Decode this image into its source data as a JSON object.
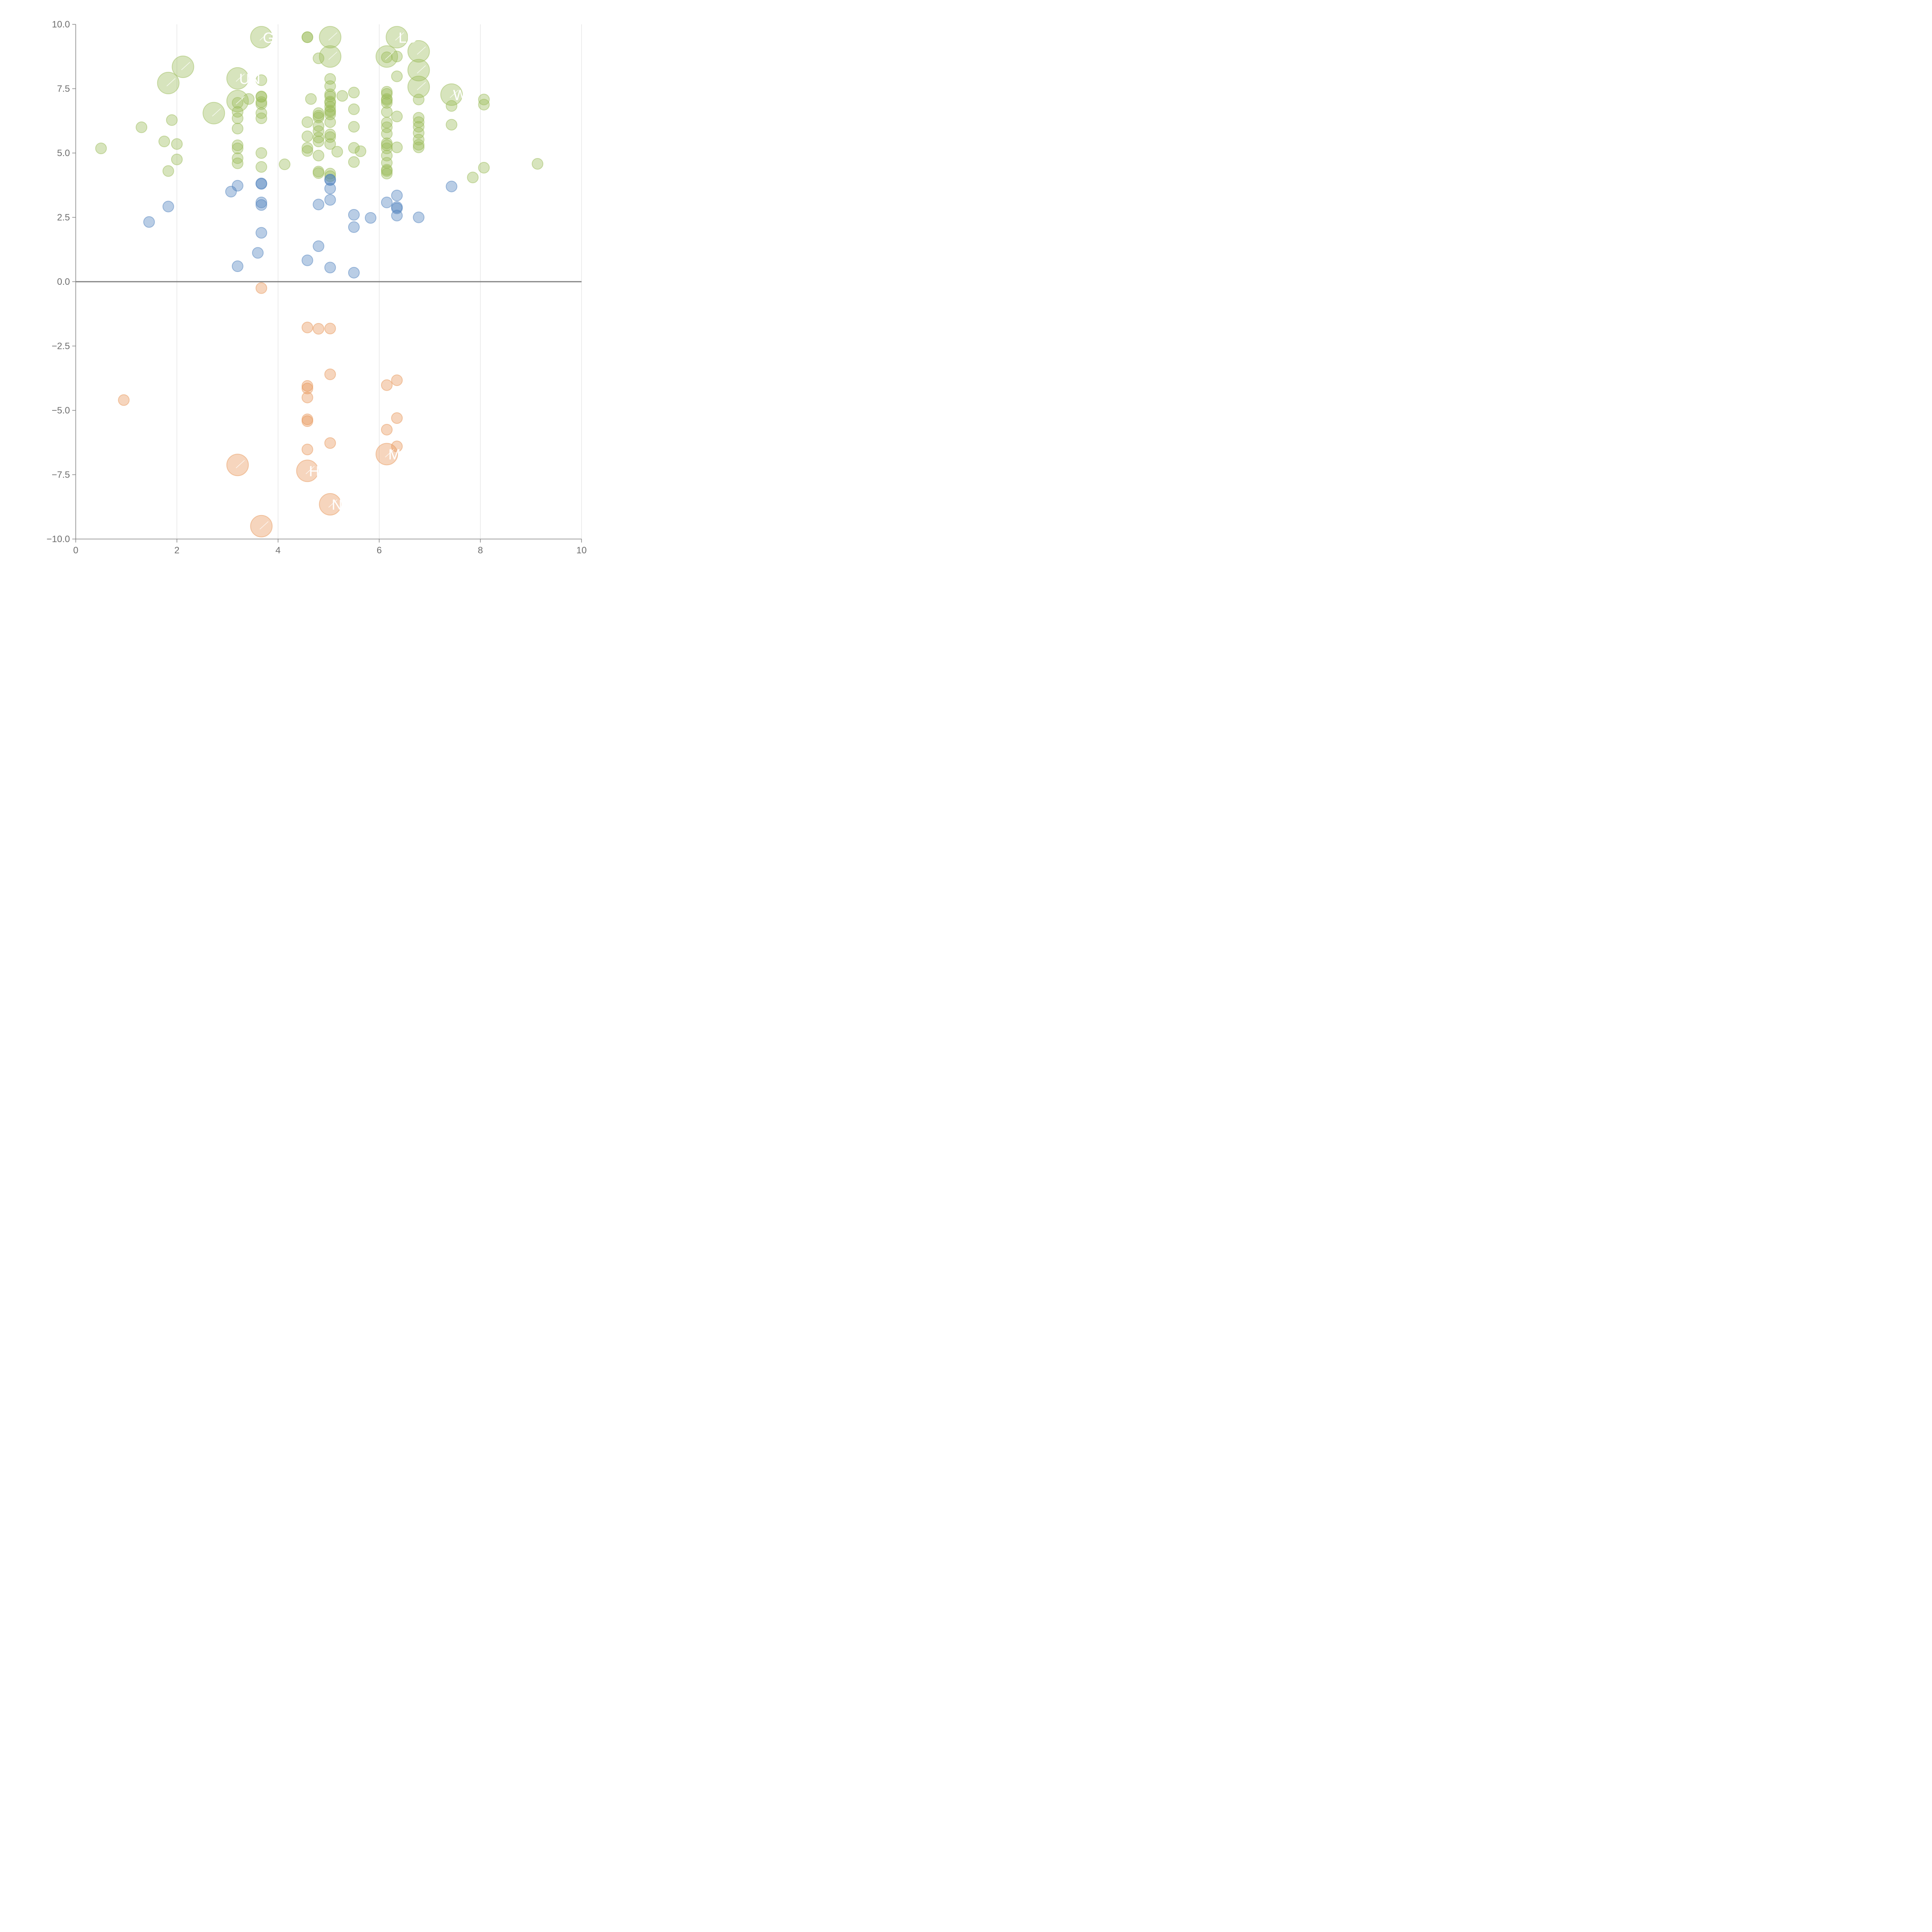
{
  "chart_data": {
    "type": "scatter",
    "title": "",
    "xlabel": "",
    "ylabel": "",
    "xlim": [
      0,
      10
    ],
    "ylim": [
      -10,
      10
    ],
    "x_ticks": [
      "0",
      "2",
      "4",
      "6",
      "8",
      "10"
    ],
    "y_ticks": [
      "10.0",
      "7.5",
      "5.0",
      "2.5",
      "0.0",
      "−2.5",
      "−5.0",
      "−7.5",
      "−10.0"
    ],
    "grid": "vertical",
    "zero_line": true,
    "colors": {
      "green": "#9bbb59",
      "blue": "#4f81bd",
      "orange": "#e8975a",
      "axis": "#808080",
      "grid": "#d9d9d9"
    },
    "series": [
      {
        "color": "#9bbb59",
        "points": [
          [
            0.5,
            5.18
          ],
          [
            1.3,
            6.0
          ],
          [
            1.75,
            5.45
          ],
          [
            1.83,
            4.3
          ],
          [
            1.9,
            6.28
          ],
          [
            2.0,
            5.35
          ],
          [
            2.0,
            4.75
          ],
          [
            3.2,
            5.3
          ],
          [
            3.2,
            5.18
          ],
          [
            3.2,
            4.8
          ],
          [
            3.2,
            4.6
          ],
          [
            3.2,
            5.95
          ],
          [
            3.2,
            6.35
          ],
          [
            3.2,
            6.6
          ],
          [
            3.2,
            6.95
          ],
          [
            3.42,
            7.1
          ],
          [
            3.67,
            7.83
          ],
          [
            3.67,
            7.2
          ],
          [
            3.67,
            7.18
          ],
          [
            3.67,
            6.98
          ],
          [
            3.67,
            6.9
          ],
          [
            3.67,
            6.55
          ],
          [
            3.67,
            6.35
          ],
          [
            3.67,
            5.0
          ],
          [
            3.67,
            4.46
          ],
          [
            4.13,
            4.56
          ],
          [
            4.58,
            9.5
          ],
          [
            4.58,
            9.5
          ],
          [
            4.58,
            6.2
          ],
          [
            4.58,
            5.65
          ],
          [
            4.58,
            5.2
          ],
          [
            4.58,
            5.08
          ],
          [
            4.65,
            7.1
          ],
          [
            4.8,
            8.68
          ],
          [
            4.8,
            6.55
          ],
          [
            4.8,
            6.45
          ],
          [
            4.8,
            6.38
          ],
          [
            4.8,
            6.05
          ],
          [
            4.8,
            5.85
          ],
          [
            4.8,
            5.6
          ],
          [
            4.8,
            5.45
          ],
          [
            4.8,
            4.9
          ],
          [
            4.8,
            4.28
          ],
          [
            4.8,
            4.22
          ],
          [
            5.03,
            7.88
          ],
          [
            5.03,
            7.6
          ],
          [
            5.03,
            7.28
          ],
          [
            5.03,
            7.2
          ],
          [
            5.03,
            7.0
          ],
          [
            5.03,
            6.95
          ],
          [
            5.03,
            6.8
          ],
          [
            5.03,
            6.65
          ],
          [
            5.03,
            6.6
          ],
          [
            5.03,
            6.5
          ],
          [
            5.03,
            6.2
          ],
          [
            5.03,
            5.72
          ],
          [
            5.03,
            5.62
          ],
          [
            5.03,
            5.35
          ],
          [
            5.03,
            4.2
          ],
          [
            5.03,
            4.1
          ],
          [
            5.17,
            5.05
          ],
          [
            5.27,
            7.22
          ],
          [
            5.5,
            7.35
          ],
          [
            5.5,
            6.7
          ],
          [
            5.5,
            6.02
          ],
          [
            5.5,
            5.2
          ],
          [
            5.5,
            4.65
          ],
          [
            5.63,
            5.07
          ],
          [
            6.15,
            7.38
          ],
          [
            6.15,
            7.3
          ],
          [
            6.15,
            7.1
          ],
          [
            6.15,
            7.05
          ],
          [
            6.15,
            6.95
          ],
          [
            6.15,
            6.6
          ],
          [
            6.15,
            6.18
          ],
          [
            6.15,
            6.0
          ],
          [
            6.15,
            5.75
          ],
          [
            6.15,
            5.38
          ],
          [
            6.15,
            5.3
          ],
          [
            6.15,
            5.18
          ],
          [
            6.15,
            4.9
          ],
          [
            6.15,
            4.62
          ],
          [
            6.15,
            4.35
          ],
          [
            6.15,
            4.3
          ],
          [
            6.15,
            4.2
          ],
          [
            6.15,
            8.72
          ],
          [
            6.35,
            8.75
          ],
          [
            6.35,
            7.98
          ],
          [
            6.35,
            6.42
          ],
          [
            6.35,
            5.22
          ],
          [
            6.78,
            6.37
          ],
          [
            6.78,
            6.2
          ],
          [
            6.78,
            6.02
          ],
          [
            6.78,
            5.78
          ],
          [
            6.78,
            5.52
          ],
          [
            6.78,
            5.32
          ],
          [
            6.78,
            5.22
          ],
          [
            6.78,
            7.08
          ],
          [
            7.43,
            6.83
          ],
          [
            7.43,
            6.1
          ],
          [
            7.85,
            4.05
          ],
          [
            8.07,
            7.08
          ],
          [
            8.07,
            6.88
          ],
          [
            8.07,
            4.43
          ],
          [
            9.13,
            4.58
          ]
        ]
      },
      {
        "color": "#4f81bd",
        "points": [
          [
            1.45,
            2.32
          ],
          [
            1.83,
            2.92
          ],
          [
            3.07,
            3.5
          ],
          [
            3.2,
            3.73
          ],
          [
            3.2,
            0.6
          ],
          [
            3.6,
            1.12
          ],
          [
            3.67,
            3.82
          ],
          [
            3.67,
            3.8
          ],
          [
            3.67,
            3.08
          ],
          [
            3.67,
            2.98
          ],
          [
            3.67,
            1.9
          ],
          [
            4.58,
            0.83
          ],
          [
            4.8,
            3.0
          ],
          [
            4.8,
            1.38
          ],
          [
            5.03,
            3.97
          ],
          [
            5.03,
            3.95
          ],
          [
            5.03,
            3.62
          ],
          [
            5.03,
            3.18
          ],
          [
            5.03,
            0.55
          ],
          [
            5.5,
            2.6
          ],
          [
            5.5,
            2.12
          ],
          [
            5.5,
            0.35
          ],
          [
            5.83,
            2.48
          ],
          [
            6.15,
            3.08
          ],
          [
            6.35,
            3.35
          ],
          [
            6.35,
            2.9
          ],
          [
            6.35,
            2.85
          ],
          [
            6.35,
            2.57
          ],
          [
            6.78,
            2.5
          ],
          [
            7.43,
            3.7
          ]
        ]
      },
      {
        "color": "#e8975a",
        "points": [
          [
            0.95,
            -4.6
          ],
          [
            3.67,
            -0.25
          ],
          [
            4.58,
            -1.78
          ],
          [
            4.58,
            -4.05
          ],
          [
            4.58,
            -4.15
          ],
          [
            4.58,
            -4.5
          ],
          [
            4.58,
            -5.35
          ],
          [
            4.58,
            -5.42
          ],
          [
            4.58,
            -6.52
          ],
          [
            4.8,
            -1.83
          ],
          [
            5.03,
            -1.82
          ],
          [
            5.03,
            -3.6
          ],
          [
            5.03,
            -6.27
          ],
          [
            6.15,
            -4.02
          ],
          [
            6.15,
            -5.75
          ],
          [
            6.35,
            -3.83
          ],
          [
            6.35,
            -5.3
          ],
          [
            6.35,
            -6.4
          ]
        ]
      }
    ],
    "large_points": [
      {
        "x": 2.12,
        "y": 8.35,
        "color": "#9bbb59",
        "label": ""
      },
      {
        "x": 1.83,
        "y": 7.72,
        "color": "#9bbb59",
        "label": ""
      },
      {
        "x": 2.73,
        "y": 6.55,
        "color": "#9bbb59",
        "label": ""
      },
      {
        "x": 3.2,
        "y": 7.9,
        "color": "#9bbb59",
        "label": "UN"
      },
      {
        "x": 3.2,
        "y": 7.02,
        "color": "#9bbb59",
        "label": ""
      },
      {
        "x": 3.67,
        "y": 9.5,
        "color": "#9bbb59",
        "label": "G"
      },
      {
        "x": 5.03,
        "y": 9.5,
        "color": "#9bbb59",
        "label": ""
      },
      {
        "x": 5.03,
        "y": 8.75,
        "color": "#9bbb59",
        "label": ""
      },
      {
        "x": 6.15,
        "y": 8.75,
        "color": "#9bbb59",
        "label": ""
      },
      {
        "x": 6.35,
        "y": 9.5,
        "color": "#9bbb59",
        "label": "LD"
      },
      {
        "x": 6.78,
        "y": 8.95,
        "color": "#9bbb59",
        "label": ""
      },
      {
        "x": 6.78,
        "y": 8.22,
        "color": "#9bbb59",
        "label": ""
      },
      {
        "x": 6.78,
        "y": 7.57,
        "color": "#9bbb59",
        "label": ""
      },
      {
        "x": 7.43,
        "y": 7.27,
        "color": "#9bbb59",
        "label": "W"
      },
      {
        "x": 3.2,
        "y": -7.12,
        "color": "#e8975a",
        "label": ""
      },
      {
        "x": 4.58,
        "y": -7.35,
        "color": "#e8975a",
        "label": "HR"
      },
      {
        "x": 6.15,
        "y": -6.7,
        "color": "#e8975a",
        "label": "M"
      },
      {
        "x": 5.03,
        "y": -8.65,
        "color": "#e8975a",
        "label": "N"
      },
      {
        "x": 3.67,
        "y": -9.5,
        "color": "#e8975a",
        "label": ""
      }
    ]
  }
}
